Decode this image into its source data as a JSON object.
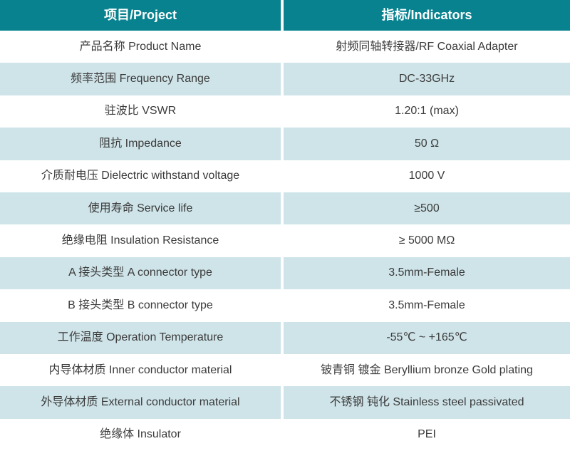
{
  "colors": {
    "header_bg": "#08828f",
    "header_text": "#ffffff",
    "row_bg": "#ffffff",
    "row_alt_bg": "#cfe4e9",
    "body_text": "#3b3b3b",
    "divider": "#ffffff"
  },
  "table": {
    "header": {
      "project": "项目/Project",
      "indicators": "指标/Indicators"
    },
    "rows": [
      {
        "project": "产品名称 Product Name",
        "indicator": "射频同轴转接器/RF Coaxial Adapter"
      },
      {
        "project": "频率范围 Frequency Range",
        "indicator": "DC-33GHz"
      },
      {
        "project": "驻波比 VSWR",
        "indicator": "1.20:1 (max)"
      },
      {
        "project": "阻抗 Impedance",
        "indicator": "50 Ω"
      },
      {
        "project": "介质耐电压 Dielectric withstand voltage",
        "indicator": "1000 V"
      },
      {
        "project": "使用寿命 Service life",
        "indicator": "≥500"
      },
      {
        "project": "绝缘电阻 Insulation Resistance",
        "indicator": "≥ 5000 MΩ"
      },
      {
        "project": "A 接头类型  A connector type",
        "indicator": "3.5mm-Female"
      },
      {
        "project": "B 接头类型  B connector type",
        "indicator": "3.5mm-Female"
      },
      {
        "project": "工作温度 Operation Temperature",
        "indicator": "-55℃ ~ +165℃"
      },
      {
        "project": "内导体材质 Inner conductor material",
        "indicator": "铍青铜 镀金 Beryllium bronze Gold plating"
      },
      {
        "project": "外导体材质 External conductor material",
        "indicator": "不锈钢 钝化 Stainless steel passivated"
      },
      {
        "project": "绝缘体 Insulator",
        "indicator": "PEI"
      }
    ]
  }
}
